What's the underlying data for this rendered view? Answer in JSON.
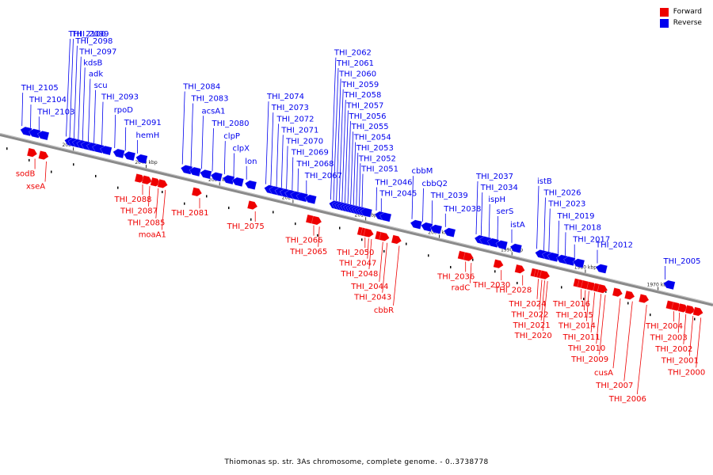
{
  "legend": {
    "forward_label": "Forward",
    "reverse_label": "Reverse",
    "forward_color": "#ee0000",
    "reverse_color": "#0000ee"
  },
  "caption": "Thiomonas sp. str. 3As chromosome, complete genome. - 0..3738778",
  "scale_marks": [
    {
      "text": "2050 kbp",
      "pos": 0.103
    },
    {
      "text": "2040 kbp",
      "pos": 0.205
    },
    {
      "text": "2030 kbp",
      "pos": 0.308
    },
    {
      "text": "2020 kbp",
      "pos": 0.411
    },
    {
      "text": "2010 kbp",
      "pos": 0.513
    },
    {
      "text": "2000 kbp",
      "pos": 0.616
    },
    {
      "text": "1990 kbp",
      "pos": 0.718
    },
    {
      "text": "1980 kbp",
      "pos": 0.821
    },
    {
      "text": "1970 kbp",
      "pos": 0.923
    }
  ],
  "reverse_genes": [
    {
      "name": "THI_2105",
      "pos": 0.033
    },
    {
      "name": "THI_2104",
      "pos": 0.045
    },
    {
      "name": "THI_2103",
      "pos": 0.057
    },
    {
      "name": "THI_2100",
      "pos": 0.095
    },
    {
      "name": "THI_2099",
      "pos": 0.1
    },
    {
      "name": "THI_2098",
      "pos": 0.106
    },
    {
      "name": "THI_2097",
      "pos": 0.112
    },
    {
      "name": "kdsB",
      "pos": 0.118
    },
    {
      "name": "adk",
      "pos": 0.126
    },
    {
      "name": "scu",
      "pos": 0.134
    },
    {
      "name": "THI_2093",
      "pos": 0.145
    },
    {
      "name": "rpoD",
      "pos": 0.163
    },
    {
      "name": "THI_2091",
      "pos": 0.178
    },
    {
      "name": "hemH",
      "pos": 0.195
    },
    {
      "name": "THI_2084",
      "pos": 0.258
    },
    {
      "name": "THI_2083",
      "pos": 0.27
    },
    {
      "name": "acsA1",
      "pos": 0.285
    },
    {
      "name": "THI_2080",
      "pos": 0.3
    },
    {
      "name": "clpP",
      "pos": 0.317
    },
    {
      "name": "clpX",
      "pos": 0.33
    },
    {
      "name": "lon",
      "pos": 0.348
    },
    {
      "name": "THI_2074",
      "pos": 0.375
    },
    {
      "name": "THI_2073",
      "pos": 0.382
    },
    {
      "name": "THI_2072",
      "pos": 0.39
    },
    {
      "name": "THI_2071",
      "pos": 0.397
    },
    {
      "name": "THI_2070",
      "pos": 0.404
    },
    {
      "name": "THI_2069",
      "pos": 0.412
    },
    {
      "name": "THI_2068",
      "pos": 0.42
    },
    {
      "name": "THI_2067",
      "pos": 0.432
    },
    {
      "name": "THI_2062",
      "pos": 0.466
    },
    {
      "name": "THI_2061",
      "pos": 0.47
    },
    {
      "name": "THI_2060",
      "pos": 0.474
    },
    {
      "name": "THI_2059",
      "pos": 0.478
    },
    {
      "name": "THI_2058",
      "pos": 0.482
    },
    {
      "name": "THI_2057",
      "pos": 0.486
    },
    {
      "name": "THI_2056",
      "pos": 0.49
    },
    {
      "name": "THI_2055",
      "pos": 0.494
    },
    {
      "name": "THI_2054",
      "pos": 0.498
    },
    {
      "name": "THI_2053",
      "pos": 0.502
    },
    {
      "name": "THI_2052",
      "pos": 0.506
    },
    {
      "name": "THI_2051",
      "pos": 0.51
    },
    {
      "name": "THI_2046",
      "pos": 0.53
    },
    {
      "name": "THI_2045",
      "pos": 0.537
    },
    {
      "name": "cbbM",
      "pos": 0.58
    },
    {
      "name": "cbbQ2",
      "pos": 0.595
    },
    {
      "name": "THI_2039",
      "pos": 0.608
    },
    {
      "name": "THI_2038",
      "pos": 0.627
    },
    {
      "name": "THI_2037",
      "pos": 0.67
    },
    {
      "name": "THI_2034",
      "pos": 0.677
    },
    {
      "name": "ispH",
      "pos": 0.688
    },
    {
      "name": "serS",
      "pos": 0.7
    },
    {
      "name": "istA",
      "pos": 0.72
    },
    {
      "name": "istB",
      "pos": 0.755
    },
    {
      "name": "THI_2026",
      "pos": 0.765
    },
    {
      "name": "THI_2023",
      "pos": 0.772
    },
    {
      "name": "THI_2019",
      "pos": 0.785
    },
    {
      "name": "THI_2018",
      "pos": 0.795
    },
    {
      "name": "THI_2017",
      "pos": 0.808
    },
    {
      "name": "THI_2012",
      "pos": 0.84
    },
    {
      "name": "THI_2005",
      "pos": 0.935
    }
  ],
  "forward_genes": [
    {
      "name": "sodB",
      "pos": 0.049
    },
    {
      "name": "xseA",
      "pos": 0.065
    },
    {
      "name": "THI_2088",
      "pos": 0.2
    },
    {
      "name": "THI_2087",
      "pos": 0.21
    },
    {
      "name": "THI_2085",
      "pos": 0.222
    },
    {
      "name": "moaA1",
      "pos": 0.232
    },
    {
      "name": "THI_2081",
      "pos": 0.28
    },
    {
      "name": "THI_2075",
      "pos": 0.358
    },
    {
      "name": "THI_2066",
      "pos": 0.44
    },
    {
      "name": "THI_2065",
      "pos": 0.448
    },
    {
      "name": "THI_2050",
      "pos": 0.512
    },
    {
      "name": "THI_2047",
      "pos": 0.517
    },
    {
      "name": "THI_2048",
      "pos": 0.521
    },
    {
      "name": "THI_2044",
      "pos": 0.537
    },
    {
      "name": "THI_2043",
      "pos": 0.543
    },
    {
      "name": "cbbR",
      "pos": 0.56
    },
    {
      "name": "THI_2036",
      "pos": 0.653
    },
    {
      "name": "radC",
      "pos": 0.661
    },
    {
      "name": "THI_2030",
      "pos": 0.703
    },
    {
      "name": "THI_2028",
      "pos": 0.733
    },
    {
      "name": "THI_2024",
      "pos": 0.755
    },
    {
      "name": "THI_2022",
      "pos": 0.76
    },
    {
      "name": "THI_2021",
      "pos": 0.764
    },
    {
      "name": "THI_2020",
      "pos": 0.768
    },
    {
      "name": "THI_2016",
      "pos": 0.815
    },
    {
      "name": "THI_2015",
      "pos": 0.821
    },
    {
      "name": "THI_2014",
      "pos": 0.826
    },
    {
      "name": "THI_2011",
      "pos": 0.834
    },
    {
      "name": "THI_2010",
      "pos": 0.843
    },
    {
      "name": "THI_2009",
      "pos": 0.849
    },
    {
      "name": "cusA",
      "pos": 0.87
    },
    {
      "name": "THI_2007",
      "pos": 0.887
    },
    {
      "name": "THI_2006",
      "pos": 0.907
    },
    {
      "name": "THI_2004",
      "pos": 0.945
    },
    {
      "name": "THI_2003",
      "pos": 0.953
    },
    {
      "name": "THI_2002",
      "pos": 0.962
    },
    {
      "name": "THI_2001",
      "pos": 0.972
    },
    {
      "name": "THI_2000",
      "pos": 0.983
    }
  ]
}
